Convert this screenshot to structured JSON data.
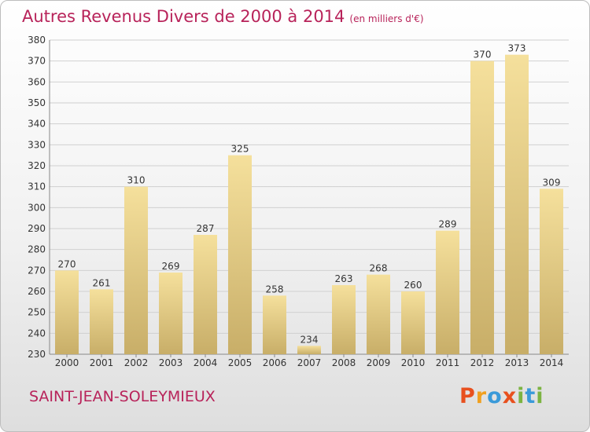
{
  "title": "Autres Revenus Divers de 2000 à 2014",
  "title_unit": "(en milliers d'€)",
  "location": "SAINT-JEAN-SOLEYMIEUX",
  "brand": {
    "letters": [
      "P",
      "r",
      "o",
      "x",
      "i",
      "t",
      "i"
    ],
    "colors": [
      "#e8501e",
      "#f0a020",
      "#3a9ad9",
      "#e8501e",
      "#7cb342",
      "#3a9ad9",
      "#7cb342"
    ]
  },
  "colors": {
    "title": "#b8235a",
    "bar_light": "#f3dc96",
    "bar_dark": "#c9b06a",
    "grid": "#d0d0d0"
  },
  "chart_data": {
    "type": "bar",
    "title": "Autres Revenus Divers de 2000 à 2014",
    "categories": [
      "2000",
      "2001",
      "2002",
      "2003",
      "2004",
      "2005",
      "2006",
      "2007",
      "2008",
      "2009",
      "2010",
      "2011",
      "2012",
      "2013",
      "2014"
    ],
    "values": [
      270,
      261,
      310,
      269,
      287,
      325,
      258,
      234,
      263,
      268,
      260,
      289,
      370,
      373,
      309
    ],
    "ylim": [
      230,
      380
    ],
    "yticks": [
      230,
      240,
      250,
      260,
      270,
      280,
      290,
      300,
      310,
      320,
      330,
      340,
      350,
      360,
      370,
      380
    ],
    "grid": true
  }
}
